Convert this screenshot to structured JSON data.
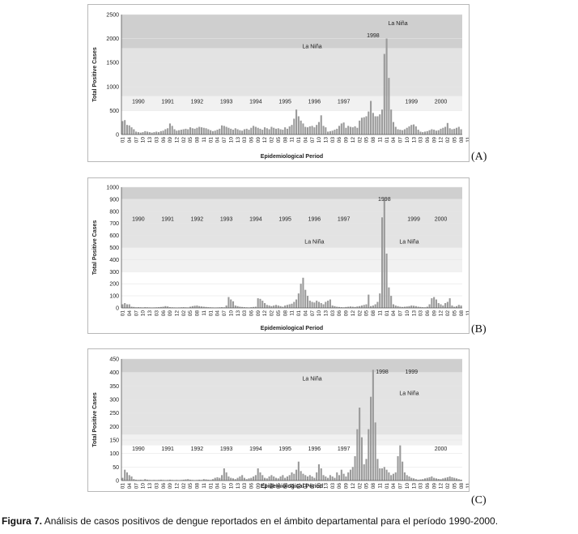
{
  "caption": {
    "label": "Figura 7.",
    "text": "Análisis de casos positivos de dengue reportados en el ámbito departamental para el período 1990-2000."
  },
  "colors": {
    "bar": "#9a9a9a",
    "band_dark": "#cfcfcf",
    "band_mid": "#e3e3e3",
    "band_light": "#f1f1f1",
    "panel_border": "#b8b8b8"
  },
  "chart_data": [
    {
      "type": "bar",
      "panel_label": "(A)",
      "xlabel": "Epidemiological Period",
      "ylabel": "Total Positive Cases",
      "ylim": [
        0,
        2500
      ],
      "yticks": [
        0,
        500,
        1000,
        1500,
        2000,
        2500
      ],
      "bands": [
        {
          "from": 0,
          "to": 500,
          "shade": "none"
        },
        {
          "from": 500,
          "to": 800,
          "shade": "light"
        },
        {
          "from": 800,
          "to": 1800,
          "shade": "mid"
        },
        {
          "from": 1800,
          "to": 2500,
          "shade": "dark"
        }
      ],
      "xtick_labels": [
        "01",
        "04",
        "07",
        "10",
        "13",
        "03",
        "06",
        "09",
        "12",
        "02",
        "05",
        "08",
        "11",
        "01",
        "04",
        "07",
        "10",
        "13",
        "03",
        "06",
        "09",
        "12",
        "02",
        "05",
        "08",
        "11",
        "01",
        "04",
        "07",
        "10",
        "13",
        "03",
        "06",
        "09",
        "12",
        "02",
        "05",
        "08",
        "11",
        "01",
        "04",
        "07",
        "10",
        "13",
        "03",
        "06",
        "09",
        "12",
        "02",
        "05",
        "08",
        "11",
        "01",
        "04",
        "07",
        "10",
        "13",
        "03",
        "06",
        "09",
        "12",
        "02",
        "05",
        "08",
        "11",
        "01",
        "04",
        "07",
        "10",
        "13",
        "03",
        "06",
        "09",
        "12",
        "02",
        "05",
        "08",
        "11",
        "01",
        "04",
        "07",
        "10",
        "13",
        "03",
        "06",
        "09",
        "12"
      ],
      "year_labels": [
        {
          "text": "1990",
          "period": 7,
          "y": 700
        },
        {
          "text": "1991",
          "period": 20,
          "y": 700
        },
        {
          "text": "1992",
          "period": 33,
          "y": 700
        },
        {
          "text": "1993",
          "period": 46,
          "y": 700
        },
        {
          "text": "1994",
          "period": 59,
          "y": 700
        },
        {
          "text": "1995",
          "period": 72,
          "y": 700
        },
        {
          "text": "1996",
          "period": 85,
          "y": 700
        },
        {
          "text": "1997",
          "period": 98,
          "y": 700
        },
        {
          "text": "1999",
          "period": 128,
          "y": 700
        },
        {
          "text": "2000",
          "period": 141,
          "y": 700
        }
      ],
      "annotations": [
        {
          "text": "La Niña",
          "period": 84,
          "y": 1850
        },
        {
          "text": "1998",
          "period": 111,
          "y": 2080
        },
        {
          "text": "La Niña",
          "period": 122,
          "y": 2330
        }
      ],
      "values": [
        280,
        300,
        200,
        190,
        150,
        110,
        60,
        50,
        40,
        50,
        70,
        60,
        50,
        40,
        50,
        60,
        50,
        70,
        80,
        110,
        130,
        230,
        180,
        110,
        80,
        90,
        100,
        110,
        120,
        110,
        150,
        130,
        120,
        140,
        160,
        150,
        140,
        130,
        110,
        90,
        70,
        80,
        100,
        120,
        190,
        180,
        160,
        140,
        120,
        100,
        130,
        110,
        90,
        80,
        110,
        120,
        100,
        140,
        180,
        160,
        140,
        120,
        100,
        150,
        130,
        110,
        160,
        140,
        120,
        130,
        110,
        100,
        150,
        120,
        170,
        200,
        330,
        520,
        380,
        290,
        230,
        160,
        150,
        170,
        180,
        150,
        200,
        260,
        400,
        180,
        150,
        60,
        70,
        80,
        100,
        120,
        180,
        230,
        250,
        140,
        180,
        160,
        150,
        170,
        140,
        290,
        350,
        360,
        380,
        480,
        700,
        450,
        380,
        380,
        420,
        520,
        1680,
        2000,
        1180,
        520,
        260,
        160,
        110,
        100,
        90,
        110,
        140,
        170,
        200,
        210,
        170,
        100,
        60,
        50,
        60,
        70,
        90,
        110,
        100,
        80,
        90,
        120,
        140,
        160,
        240,
        130,
        110,
        120,
        140,
        160,
        110
      ]
    },
    {
      "type": "bar",
      "panel_label": "(B)",
      "xlabel": "Epidemiological Period",
      "ylabel": "Total Positive Cases",
      "ylim": [
        0,
        1000
      ],
      "yticks": [
        0,
        100,
        200,
        300,
        400,
        500,
        600,
        700,
        800,
        900,
        1000
      ],
      "bands": [
        {
          "from": 0,
          "to": 300,
          "shade": "none"
        },
        {
          "from": 300,
          "to": 500,
          "shade": "light"
        },
        {
          "from": 500,
          "to": 900,
          "shade": "mid"
        },
        {
          "from": 900,
          "to": 1000,
          "shade": "dark"
        }
      ],
      "xtick_labels": [
        "01",
        "04",
        "07",
        "10",
        "13",
        "03",
        "06",
        "09",
        "12",
        "02",
        "05",
        "08",
        "11",
        "01",
        "04",
        "07",
        "10",
        "13",
        "03",
        "06",
        "09",
        "12",
        "02",
        "05",
        "08",
        "11",
        "01",
        "04",
        "07",
        "10",
        "13",
        "03",
        "06",
        "09",
        "12",
        "02",
        "05",
        "08",
        "11",
        "01",
        "04",
        "07",
        "10",
        "13",
        "03",
        "06",
        "09",
        "12",
        "02",
        "05",
        "08",
        "11",
        "01",
        "04",
        "07",
        "10",
        "13",
        "03",
        "06",
        "09",
        "12",
        "02",
        "05",
        "08",
        "11",
        "01",
        "04",
        "07",
        "10",
        "13",
        "03",
        "06",
        "09",
        "12",
        "02",
        "05",
        "08",
        "11",
        "01",
        "04",
        "07",
        "10",
        "13",
        "03",
        "06",
        "09",
        "12"
      ],
      "year_labels": [
        {
          "text": "1990",
          "period": 7,
          "y": 740
        },
        {
          "text": "1991",
          "period": 20,
          "y": 740
        },
        {
          "text": "1992",
          "period": 33,
          "y": 740
        },
        {
          "text": "1993",
          "period": 46,
          "y": 740
        },
        {
          "text": "1994",
          "period": 59,
          "y": 740
        },
        {
          "text": "1995",
          "period": 72,
          "y": 740
        },
        {
          "text": "1996",
          "period": 85,
          "y": 740
        },
        {
          "text": "1997",
          "period": 98,
          "y": 740
        },
        {
          "text": "1999",
          "period": 129,
          "y": 740
        },
        {
          "text": "2000",
          "period": 141,
          "y": 740
        }
      ],
      "annotations": [
        {
          "text": "1998",
          "period": 116,
          "y": 905
        },
        {
          "text": "La Niña",
          "period": 85,
          "y": 555
        },
        {
          "text": "La Niña",
          "period": 127,
          "y": 555
        }
      ],
      "values": [
        30,
        40,
        30,
        30,
        10,
        8,
        5,
        6,
        5,
        4,
        6,
        5,
        4,
        3,
        4,
        5,
        6,
        8,
        10,
        15,
        12,
        6,
        5,
        4,
        3,
        4,
        5,
        6,
        5,
        4,
        10,
        15,
        18,
        20,
        15,
        12,
        10,
        8,
        6,
        5,
        4,
        3,
        4,
        5,
        6,
        5,
        20,
        90,
        70,
        55,
        20,
        15,
        10,
        8,
        6,
        5,
        4,
        6,
        8,
        10,
        80,
        75,
        60,
        40,
        25,
        20,
        15,
        20,
        25,
        20,
        15,
        10,
        20,
        25,
        30,
        35,
        50,
        70,
        120,
        200,
        250,
        150,
        100,
        60,
        50,
        45,
        60,
        50,
        40,
        30,
        50,
        60,
        70,
        20,
        15,
        10,
        8,
        6,
        5,
        8,
        10,
        12,
        10,
        8,
        12,
        15,
        20,
        25,
        30,
        110,
        15,
        20,
        30,
        50,
        120,
        750,
        900,
        450,
        170,
        100,
        30,
        20,
        15,
        10,
        8,
        10,
        12,
        15,
        20,
        18,
        15,
        10,
        8,
        6,
        5,
        10,
        30,
        80,
        90,
        70,
        40,
        30,
        20,
        40,
        50,
        80,
        20,
        10,
        15,
        25,
        20
      ]
    },
    {
      "type": "bar",
      "panel_label": "(C)",
      "xlabel": "Epidemiological Period",
      "ylabel": "Total Positive Cases",
      "ylim": [
        0,
        450
      ],
      "yticks": [
        0,
        50,
        100,
        150,
        200,
        250,
        300,
        350,
        400,
        450
      ],
      "bands": [
        {
          "from": 0,
          "to": 130,
          "shade": "none"
        },
        {
          "from": 130,
          "to": 170,
          "shade": "light"
        },
        {
          "from": 170,
          "to": 400,
          "shade": "mid"
        },
        {
          "from": 400,
          "to": 450,
          "shade": "dark"
        }
      ],
      "xtick_labels": [
        "01",
        "04",
        "07",
        "10",
        "13",
        "03",
        "06",
        "09",
        "12",
        "02",
        "05",
        "08",
        "11",
        "01",
        "04",
        "07",
        "10",
        "13",
        "03",
        "06",
        "09",
        "12",
        "02",
        "05",
        "08",
        "11",
        "01",
        "04",
        "07",
        "10",
        "13",
        "03",
        "06",
        "09",
        "12",
        "02",
        "05",
        "08",
        "11",
        "01",
        "04",
        "07",
        "10",
        "13",
        "03",
        "06",
        "09",
        "12",
        "02",
        "05",
        "08",
        "11",
        "01",
        "04",
        "07",
        "10",
        "13",
        "03",
        "06",
        "09",
        "12",
        "02",
        "05",
        "08",
        "11",
        "01",
        "04",
        "07",
        "10",
        "13",
        "03",
        "06",
        "09",
        "12",
        "02",
        "05",
        "08",
        "11",
        "01",
        "04",
        "07",
        "10",
        "13",
        "03",
        "06",
        "09",
        "12"
      ],
      "year_labels": [
        {
          "text": "1990",
          "period": 7,
          "y": 120
        },
        {
          "text": "1991",
          "period": 20,
          "y": 120
        },
        {
          "text": "1992",
          "period": 33,
          "y": 120
        },
        {
          "text": "1993",
          "period": 46,
          "y": 120
        },
        {
          "text": "1994",
          "period": 59,
          "y": 120
        },
        {
          "text": "1995",
          "period": 72,
          "y": 120
        },
        {
          "text": "1996",
          "period": 85,
          "y": 120
        },
        {
          "text": "1997",
          "period": 98,
          "y": 120
        },
        {
          "text": "2000",
          "period": 141,
          "y": 120
        }
      ],
      "annotations": [
        {
          "text": "La Niña",
          "period": 84,
          "y": 380
        },
        {
          "text": "1998",
          "period": 115,
          "y": 405
        },
        {
          "text": "1999",
          "period": 128,
          "y": 405
        },
        {
          "text": "La Niña",
          "period": 127,
          "y": 325
        }
      ],
      "values": [
        10,
        40,
        30,
        20,
        15,
        5,
        3,
        2,
        3,
        2,
        5,
        3,
        2,
        1,
        2,
        1,
        2,
        3,
        2,
        1,
        2,
        3,
        2,
        1,
        2,
        1,
        2,
        3,
        4,
        5,
        3,
        2,
        1,
        2,
        3,
        2,
        5,
        4,
        3,
        2,
        5,
        10,
        12,
        10,
        20,
        45,
        30,
        15,
        10,
        8,
        5,
        10,
        15,
        20,
        10,
        5,
        8,
        10,
        15,
        20,
        45,
        30,
        20,
        10,
        8,
        15,
        20,
        15,
        10,
        8,
        15,
        20,
        10,
        15,
        20,
        30,
        25,
        40,
        70,
        35,
        25,
        20,
        15,
        20,
        15,
        10,
        30,
        60,
        45,
        20,
        15,
        10,
        20,
        15,
        10,
        30,
        20,
        40,
        25,
        15,
        30,
        40,
        50,
        90,
        190,
        270,
        160,
        60,
        80,
        190,
        310,
        410,
        215,
        80,
        45,
        45,
        50,
        40,
        30,
        20,
        25,
        30,
        90,
        130,
        70,
        30,
        20,
        15,
        10,
        8,
        5,
        3,
        4,
        5,
        8,
        10,
        12,
        15,
        10,
        8,
        6,
        5,
        8,
        10,
        12,
        15,
        12,
        10,
        8,
        5,
        3
      ]
    }
  ]
}
